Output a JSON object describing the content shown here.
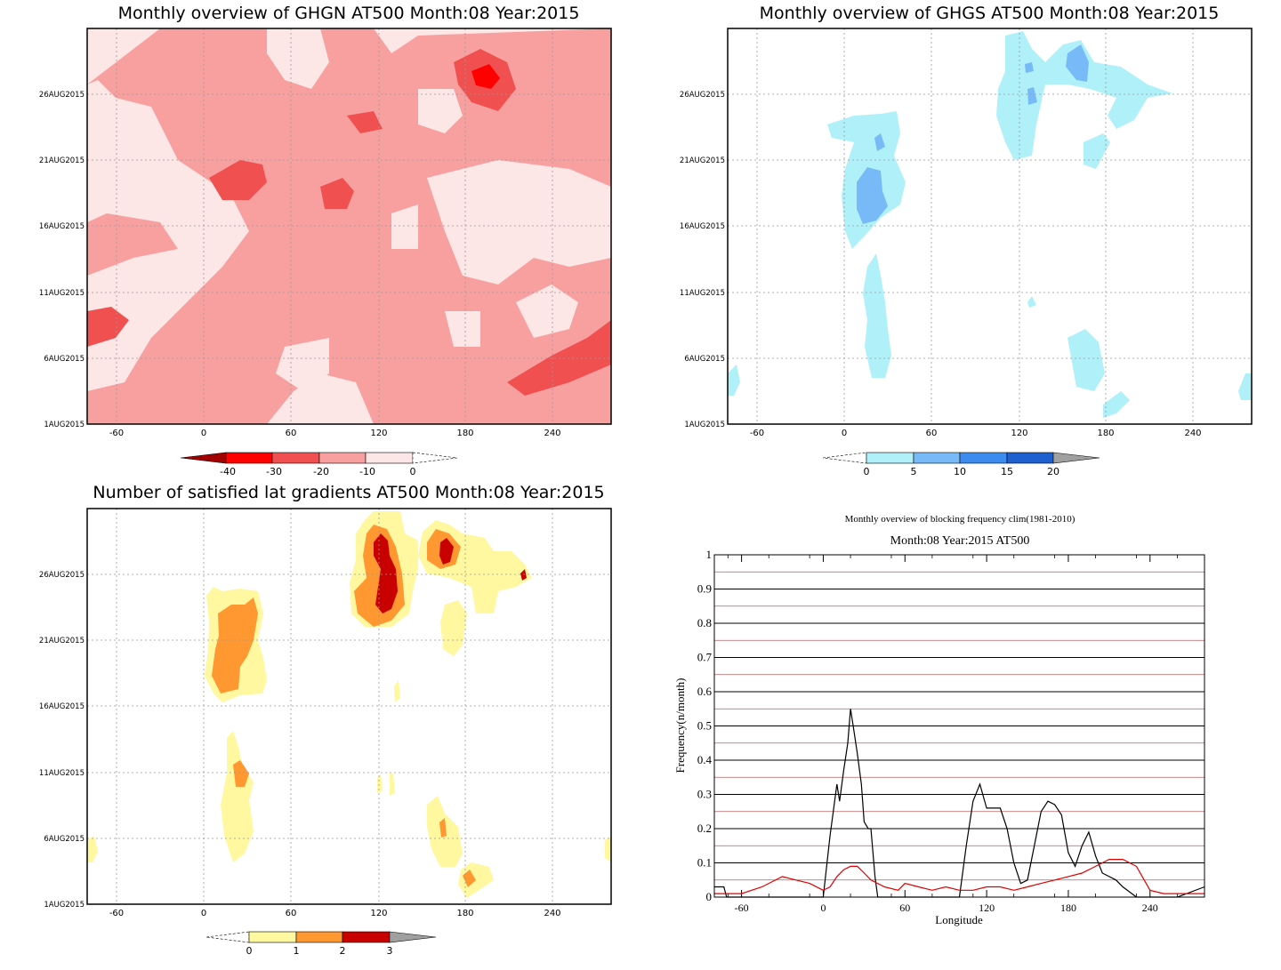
{
  "panel_ghgn": {
    "title": "Monthly overview of GHGN AT500 Month:08 Year:2015",
    "x_ticks": [
      "-60",
      "0",
      "60",
      "120",
      "180",
      "240"
    ],
    "y_ticks": [
      "1AUG2015",
      "6AUG2015",
      "11AUG2015",
      "16AUG2015",
      "21AUG2015",
      "26AUG2015"
    ],
    "colorbar_labels": [
      "-40",
      "-30",
      "-20",
      "-10",
      "0"
    ],
    "colorbar_colors": [
      "#a00000",
      "#ff0000",
      "#f05050",
      "#f8a0a0",
      "#fde6e6"
    ]
  },
  "panel_ghgs": {
    "title": "Monthly overview of GHGS AT500 Month:08 Year:2015",
    "x_ticks": [
      "-60",
      "0",
      "60",
      "120",
      "180",
      "240"
    ],
    "y_ticks": [
      "1AUG2015",
      "6AUG2015",
      "11AUG2015",
      "16AUG2015",
      "21AUG2015",
      "26AUG2015"
    ],
    "colorbar_labels": [
      "0",
      "5",
      "10",
      "15",
      "20"
    ],
    "colorbar_colors": [
      "#b0f0f8",
      "#78baf8",
      "#3c8cf0",
      "#1e60d0",
      "#a0a0a0"
    ]
  },
  "panel_lat": {
    "title": "Number of satisfied lat gradients AT500 Month:08 Year:2015",
    "x_ticks": [
      "-60",
      "0",
      "60",
      "120",
      "180",
      "240"
    ],
    "y_ticks": [
      "1AUG2015",
      "6AUG2015",
      "11AUG2015",
      "16AUG2015",
      "21AUG2015",
      "26AUG2015"
    ],
    "colorbar_labels": [
      "0",
      "1",
      "2",
      "3"
    ],
    "colorbar_colors": [
      "#fff8a0",
      "#ff9830",
      "#c80000",
      "#a0a0a0"
    ]
  },
  "chart_data": [
    {
      "type": "heatmap",
      "title": "Monthly overview of GHGN AT500 Month:08 Year:2015",
      "xlim": [
        -80,
        280
      ],
      "x_ticks": [
        -60,
        0,
        60,
        120,
        180,
        240
      ],
      "y_ticks": [
        "1AUG2015",
        "6AUG2015",
        "11AUG2015",
        "16AUG2015",
        "21AUG2015",
        "26AUG2015"
      ],
      "levels": [
        -40,
        -30,
        -20,
        -10,
        0
      ],
      "grid": true
    },
    {
      "type": "heatmap",
      "title": "Monthly overview of GHGS AT500 Month:08 Year:2015",
      "xlim": [
        -80,
        280
      ],
      "x_ticks": [
        -60,
        0,
        60,
        120,
        180,
        240
      ],
      "y_ticks": [
        "1AUG2015",
        "6AUG2015",
        "11AUG2015",
        "16AUG2015",
        "21AUG2015",
        "26AUG2015"
      ],
      "levels": [
        0,
        5,
        10,
        15,
        20
      ],
      "grid": true
    },
    {
      "type": "heatmap",
      "title": "Number of satisfied lat gradients AT500 Month:08 Year:2015",
      "xlim": [
        -80,
        280
      ],
      "x_ticks": [
        -60,
        0,
        60,
        120,
        180,
        240
      ],
      "y_ticks": [
        "1AUG2015",
        "6AUG2015",
        "11AUG2015",
        "16AUG2015",
        "21AUG2015",
        "26AUG2015"
      ],
      "levels": [
        0,
        1,
        2,
        3
      ],
      "grid": true
    },
    {
      "type": "line",
      "title": "Monthly overview of blocking frequency clim(1981-2010)",
      "subtitle": "Month:08 Year:2015  AT500",
      "xlabel": "Longitude",
      "ylabel": "Frequency(n/month)",
      "xlim": [
        -80,
        280
      ],
      "ylim": [
        0,
        1
      ],
      "x_ticks": [
        -60,
        0,
        60,
        120,
        180,
        240
      ],
      "y_ticks": [
        "0",
        "0.1",
        "0.2",
        "0.3",
        "0.4",
        "0.5",
        "0.6",
        "0.7",
        "0.8",
        "0.9",
        "1"
      ],
      "series": [
        {
          "color": "#000000",
          "x": [
            -80,
            -73,
            -71,
            -60,
            -30,
            0,
            5,
            10,
            12,
            15,
            18,
            20,
            22,
            25,
            28,
            30,
            33,
            35,
            38,
            40,
            45,
            60,
            100,
            105,
            110,
            115,
            120,
            125,
            130,
            135,
            140,
            145,
            150,
            155,
            160,
            165,
            170,
            175,
            180,
            185,
            190,
            195,
            200,
            205,
            210,
            215,
            220,
            230,
            260,
            280
          ],
          "y": [
            0.03,
            0.03,
            0,
            0,
            0,
            0,
            0.18,
            0.33,
            0.28,
            0.37,
            0.45,
            0.55,
            0.5,
            0.42,
            0.33,
            0.22,
            0.2,
            0.2,
            0.06,
            0,
            0,
            0,
            0,
            0.15,
            0.28,
            0.33,
            0.26,
            0.26,
            0.26,
            0.2,
            0.1,
            0.04,
            0.05,
            0.15,
            0.25,
            0.28,
            0.27,
            0.24,
            0.13,
            0.09,
            0.15,
            0.19,
            0.12,
            0.07,
            0.06,
            0.05,
            0.03,
            0,
            0,
            0.03
          ]
        },
        {
          "color": "#e00000",
          "x": [
            -80,
            -60,
            -45,
            -30,
            -20,
            -10,
            0,
            5,
            10,
            15,
            20,
            25,
            30,
            35,
            45,
            55,
            60,
            70,
            80,
            90,
            100,
            110,
            120,
            130,
            140,
            150,
            160,
            170,
            180,
            190,
            200,
            210,
            220,
            230,
            240,
            250,
            260,
            270,
            280
          ],
          "y": [
            0.01,
            0.01,
            0.03,
            0.06,
            0.05,
            0.04,
            0.02,
            0.03,
            0.06,
            0.08,
            0.09,
            0.09,
            0.07,
            0.05,
            0.03,
            0.02,
            0.04,
            0.03,
            0.02,
            0.03,
            0.02,
            0.02,
            0.03,
            0.03,
            0.02,
            0.03,
            0.04,
            0.05,
            0.06,
            0.07,
            0.09,
            0.11,
            0.11,
            0.09,
            0.02,
            0.01,
            0.01,
            0.01,
            0.01
          ]
        }
      ]
    }
  ]
}
